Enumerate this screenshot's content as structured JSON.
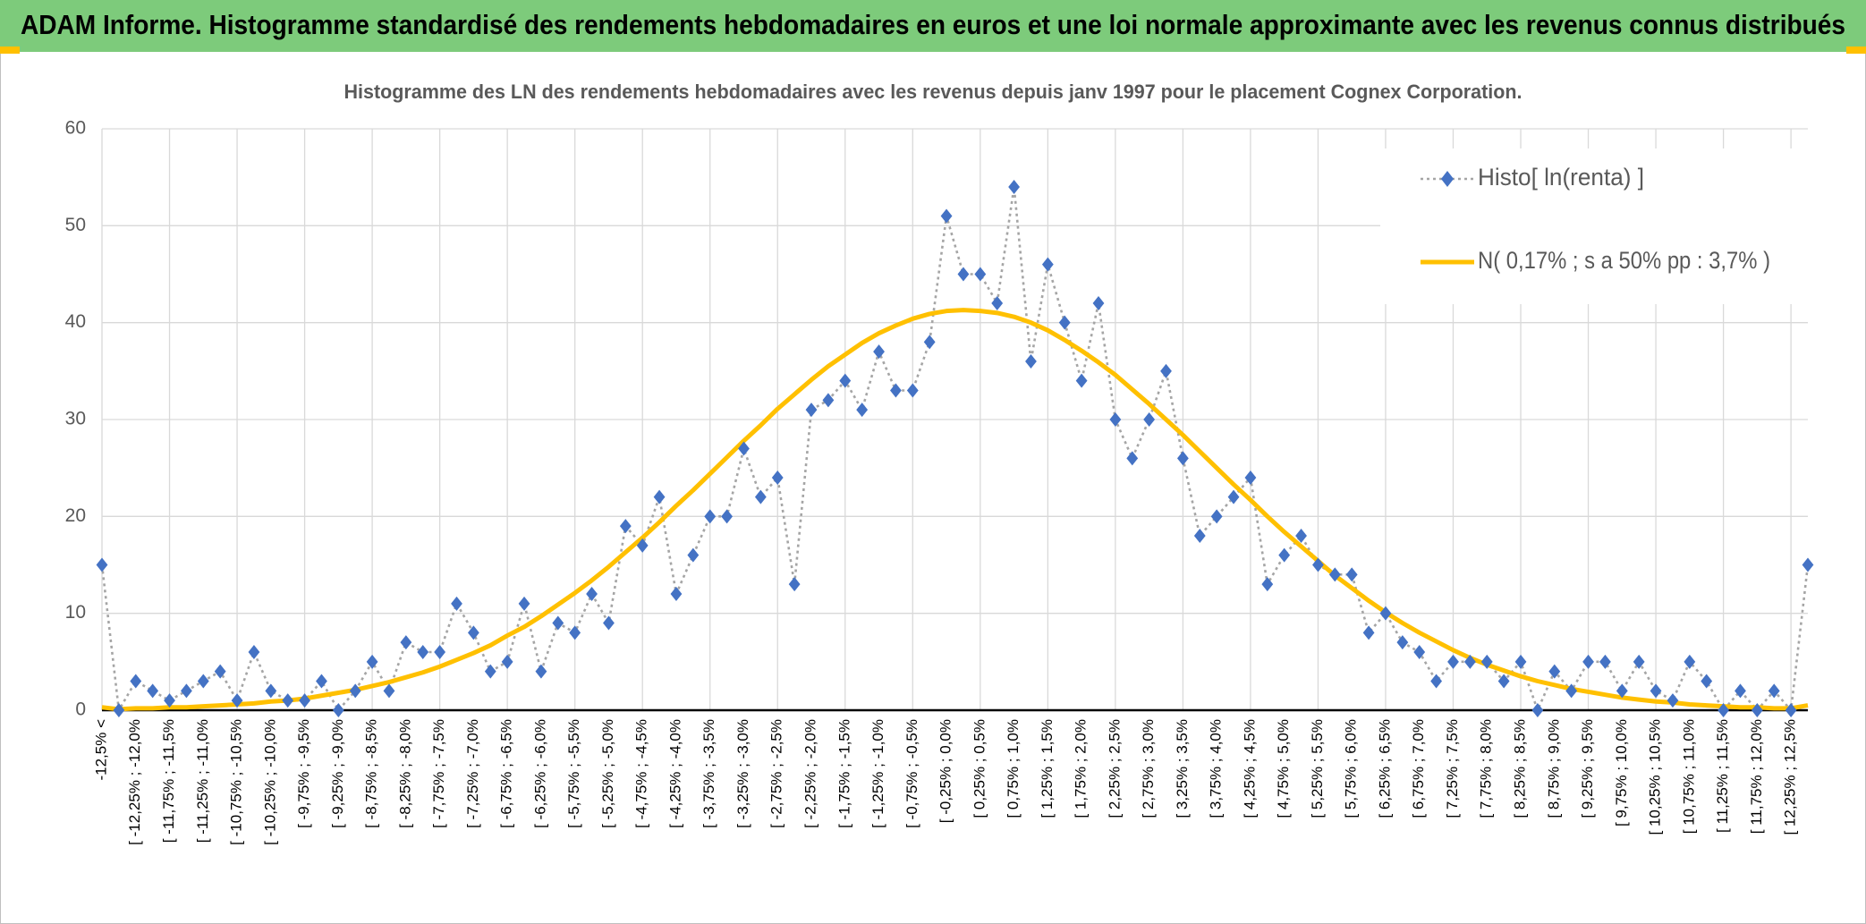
{
  "chart_data": {
    "type": "line",
    "header": "ADAM Informe. Histogramme standardisé des rendements hebdomadaires en euros et une loi normale approximante avec les revenus connus distribués",
    "title": "Histogramme des LN des rendements hebdomadaires avec les revenus depuis janv 1997 pour le placement Cognex Corporation.",
    "categories": [
      "-12,5% <",
      null,
      "[ -12,25% ; -12,0%",
      null,
      "[ -11,75% ; -11,5%",
      null,
      "[ -11,25% ; -11,0%",
      null,
      "[ -10,75% ; -10,5%",
      null,
      "[ -10,25% ; -10,0%",
      null,
      "[ -9,75% ; -9,5%",
      null,
      "[ -9,25% ; -9,0%",
      null,
      "[ -8,75% ; -8,5%",
      null,
      "[ -8,25% ; -8,0%",
      null,
      "[ -7,75% ; -7,5%",
      null,
      "[ -7,25% ; -7,0%",
      null,
      "[ -6,75% ; -6,5%",
      null,
      "[ -6,25% ; -6,0%",
      null,
      "[ -5,75% ; -5,5%",
      null,
      "[ -5,25% ; -5,0%",
      null,
      "[ -4,75% ; -4,5%",
      null,
      "[ -4,25% ; -4,0%",
      null,
      "[ -3,75% ; -3,5%",
      null,
      "[ -3,25% ; -3,0%",
      null,
      "[ -2,75% ; -2,5%",
      null,
      "[ -2,25% ; -2,0%",
      null,
      "[ -1,75% ; -1,5%",
      null,
      "[ -1,25% ; -1,0%",
      null,
      "[ -0,75% ; -0,5%",
      null,
      "[ -0,25% ; 0,0%",
      null,
      "[ 0,25% ; 0,5%",
      null,
      "[ 0,75% ; 1,0%",
      null,
      "[ 1,25% ; 1,5%",
      null,
      "[ 1,75% ; 2,0%",
      null,
      "[ 2,25% ; 2,5%",
      null,
      "[ 2,75% ; 3,0%",
      null,
      "[ 3,25% ; 3,5%",
      null,
      "[ 3,75% ; 4,0%",
      null,
      "[ 4,25% ; 4,5%",
      null,
      "[ 4,75% ; 5,0%",
      null,
      "[ 5,25% ; 5,5%",
      null,
      "[ 5,75% ; 6,0%",
      null,
      "[ 6,25% ; 6,5%",
      null,
      "[ 6,75% ; 7,0%",
      null,
      "[ 7,25% ; 7,5%",
      null,
      "[ 7,75% ; 8,0%",
      null,
      "[ 8,25% ; 8,5%",
      null,
      "[ 8,75% ; 9,0%",
      null,
      "[ 9,25% ; 9,5%",
      null,
      "[ 9,75% ; 10,0%",
      null,
      "[ 10,25% ; 10,5%",
      null,
      "[ 10,75% ; 11,0%",
      null,
      "[ 11,25% ; 11,5%",
      null,
      "[ 11,75% ; 12,0%",
      null,
      "[ 12,25% ; 12,5%",
      null
    ],
    "series": [
      {
        "name": "Histo[ ln(renta) ]",
        "color": "#4472c4",
        "line_color": "#a5a5a5",
        "marker": "diamond",
        "dashed": true,
        "values": [
          15,
          0,
          3,
          2,
          1,
          2,
          3,
          4,
          1,
          6,
          2,
          1,
          1,
          3,
          0,
          2,
          5,
          2,
          7,
          6,
          6,
          11,
          8,
          4,
          5,
          11,
          4,
          9,
          8,
          12,
          9,
          19,
          17,
          22,
          12,
          16,
          20,
          20,
          27,
          22,
          24,
          13,
          31,
          32,
          34,
          31,
          37,
          33,
          33,
          38,
          51,
          45,
          45,
          42,
          54,
          36,
          46,
          40,
          34,
          42,
          30,
          26,
          30,
          35,
          26,
          18,
          20,
          22,
          24,
          13,
          16,
          18,
          15,
          14,
          14,
          8,
          10,
          7,
          6,
          3,
          5,
          5,
          5,
          3,
          5,
          0,
          4,
          2,
          5,
          5,
          2,
          5,
          2,
          1,
          5,
          3,
          0,
          2,
          0,
          2,
          0,
          15
        ]
      },
      {
        "name": "N( 0,17% ; s a 50% pp : 3,7% )",
        "color": "#ffc000",
        "marker": "none",
        "dashed": false,
        "values": [
          0.3,
          0.1,
          0.2,
          0.2,
          0.3,
          0.3,
          0.4,
          0.5,
          0.6,
          0.7,
          0.9,
          1.0,
          1.2,
          1.5,
          1.8,
          2.1,
          2.5,
          2.9,
          3.4,
          3.9,
          4.5,
          5.2,
          5.9,
          6.7,
          7.7,
          8.6,
          9.7,
          10.9,
          12.1,
          13.4,
          14.8,
          16.3,
          17.8,
          19.4,
          21.1,
          22.7,
          24.4,
          26.1,
          27.8,
          29.4,
          31.1,
          32.6,
          34.1,
          35.5,
          36.7,
          37.9,
          38.9,
          39.7,
          40.4,
          40.9,
          41.2,
          41.3,
          41.2,
          41.0,
          40.6,
          40.0,
          39.2,
          38.2,
          37.1,
          35.9,
          34.6,
          33.1,
          31.6,
          30.0,
          28.4,
          26.7,
          25.0,
          23.3,
          21.7,
          20.0,
          18.4,
          16.9,
          15.4,
          13.9,
          12.6,
          11.3,
          10.1,
          9.0,
          8.0,
          7.1,
          6.2,
          5.4,
          4.7,
          4.1,
          3.5,
          3.0,
          2.6,
          2.2,
          1.9,
          1.6,
          1.3,
          1.1,
          0.9,
          0.8,
          0.6,
          0.5,
          0.4,
          0.3,
          0.3,
          0.2,
          0.2,
          0.5
        ]
      }
    ],
    "ylim": [
      0,
      60
    ],
    "yticks": [
      0,
      10,
      20,
      30,
      40,
      50,
      60
    ],
    "grid": true,
    "legend": "upper right"
  }
}
